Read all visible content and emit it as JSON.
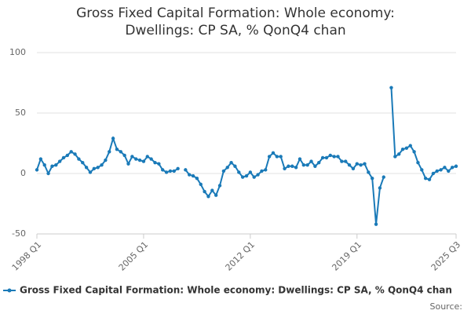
{
  "chart_data": {
    "type": "line",
    "title": "Gross Fixed Capital Formation: Whole economy: Dwellings: CP SA, % QonQ4 chan",
    "source_label": "Source:",
    "categories": [
      "1998 Q1",
      null,
      null,
      null,
      null,
      null,
      null,
      null,
      null,
      null,
      null,
      null,
      null,
      null,
      null,
      null,
      null,
      null,
      null,
      null,
      null,
      null,
      null,
      null,
      null,
      null,
      null,
      null,
      "2005 Q1",
      null,
      null,
      null,
      null,
      null,
      null,
      null,
      null,
      null,
      null,
      null,
      null,
      null,
      null,
      null,
      null,
      null,
      null,
      null,
      null,
      null,
      null,
      null,
      null,
      null,
      null,
      null,
      "2012 Q1",
      null,
      null,
      null,
      null,
      null,
      null,
      null,
      null,
      null,
      null,
      null,
      null,
      null,
      null,
      null,
      null,
      null,
      null,
      null,
      null,
      null,
      null,
      null,
      null,
      null,
      null,
      null,
      "2019 Q1",
      null,
      null,
      null,
      null,
      null,
      null,
      null,
      null,
      null,
      null,
      null,
      null,
      null,
      null,
      null,
      null,
      null,
      null,
      null,
      null,
      null,
      null,
      null,
      null,
      null,
      "2025 Q3"
    ],
    "series": [
      {
        "name": "Gross Fixed Capital Formation: Whole economy: Dwellings: CP SA, % QonQ4 chan",
        "color": "#1a7ab8",
        "values": [
          3,
          12,
          7,
          0,
          6,
          7,
          10,
          13,
          15,
          18,
          16,
          12,
          9,
          5,
          1,
          4,
          5,
          7,
          11,
          18,
          29,
          20,
          18,
          15,
          8,
          14,
          12,
          11,
          10,
          14,
          12,
          9,
          8,
          3,
          1,
          2,
          2,
          4,
          null,
          3,
          -1,
          -2,
          -4,
          -9,
          -15,
          -19,
          -14,
          -18,
          -10,
          2,
          5,
          9,
          6,
          1,
          -3,
          -2,
          1,
          -3,
          -1,
          2,
          3,
          14,
          17,
          14,
          14,
          4,
          6,
          6,
          5,
          12,
          7,
          7,
          10,
          6,
          9,
          13,
          13,
          15,
          14,
          14,
          10,
          10,
          7,
          4,
          8,
          7,
          8,
          1,
          -4,
          -42,
          -12,
          -3,
          null,
          71,
          14,
          16,
          20,
          21,
          23,
          18,
          9,
          3,
          -4,
          -5,
          0,
          2,
          3,
          5,
          2,
          5,
          6
        ]
      }
    ],
    "ylim": [
      -50,
      100
    ],
    "yticks": [
      -50,
      0,
      50,
      100
    ],
    "grid": true
  }
}
